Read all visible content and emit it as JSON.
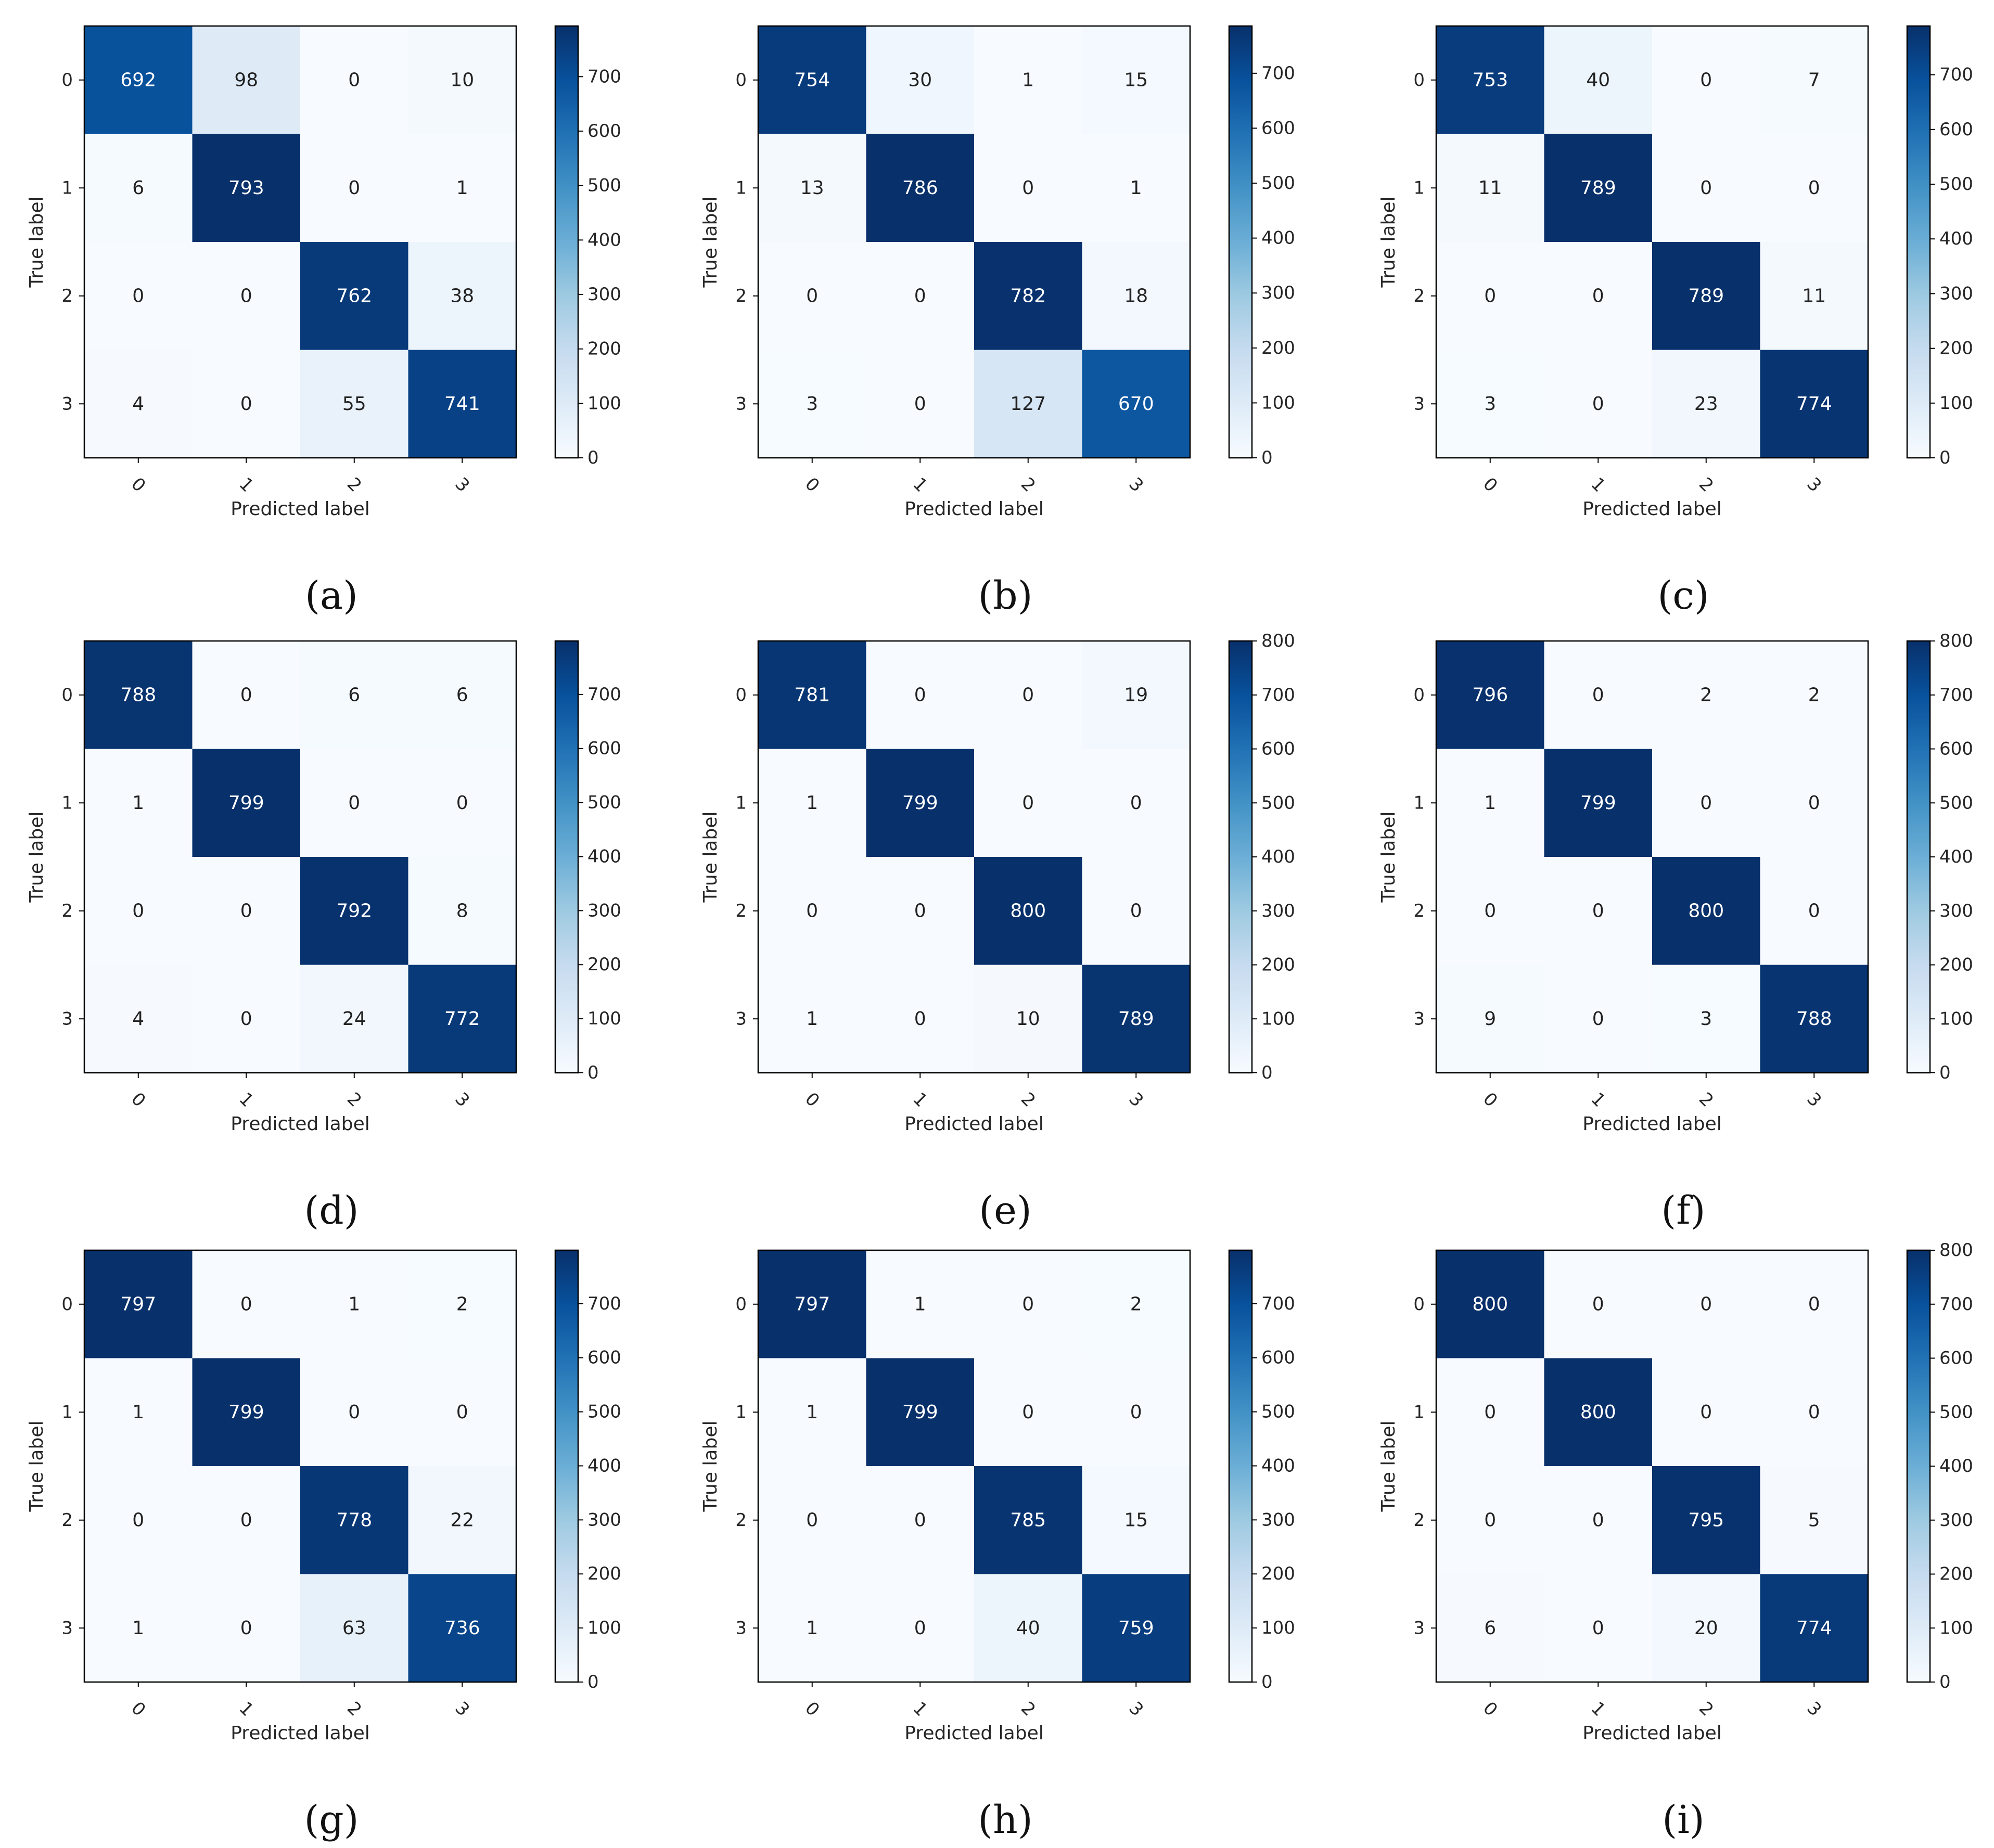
{
  "chart_data": [
    {
      "type": "heatmap",
      "caption": "(a)",
      "xlabel": "Predicted label",
      "ylabel": "True label",
      "x_ticks": [
        "0",
        "1",
        "2",
        "3"
      ],
      "y_ticks": [
        "0",
        "1",
        "2",
        "3"
      ],
      "matrix": [
        [
          692,
          98,
          0,
          10
        ],
        [
          6,
          793,
          0,
          1
        ],
        [
          0,
          0,
          762,
          38
        ],
        [
          4,
          0,
          55,
          741
        ]
      ],
      "colorbar": {
        "min": 0,
        "max": 793,
        "ticks": [
          0,
          100,
          200,
          300,
          400,
          500,
          600,
          700
        ]
      }
    },
    {
      "type": "heatmap",
      "caption": "(b)",
      "xlabel": "Predicted label",
      "ylabel": "True label",
      "x_ticks": [
        "0",
        "1",
        "2",
        "3"
      ],
      "y_ticks": [
        "0",
        "1",
        "2",
        "3"
      ],
      "matrix": [
        [
          754,
          30,
          1,
          15
        ],
        [
          13,
          786,
          0,
          1
        ],
        [
          0,
          0,
          782,
          18
        ],
        [
          3,
          0,
          127,
          670
        ]
      ],
      "colorbar": {
        "min": 0,
        "max": 786,
        "ticks": [
          0,
          100,
          200,
          300,
          400,
          500,
          600,
          700
        ]
      }
    },
    {
      "type": "heatmap",
      "caption": "(c)",
      "xlabel": "Predicted label",
      "ylabel": "True label",
      "x_ticks": [
        "0",
        "1",
        "2",
        "3"
      ],
      "y_ticks": [
        "0",
        "1",
        "2",
        "3"
      ],
      "matrix": [
        [
          753,
          40,
          0,
          7
        ],
        [
          11,
          789,
          0,
          0
        ],
        [
          0,
          0,
          789,
          11
        ],
        [
          3,
          0,
          23,
          774
        ]
      ],
      "colorbar": {
        "min": 0,
        "max": 789,
        "ticks": [
          0,
          100,
          200,
          300,
          400,
          500,
          600,
          700
        ]
      }
    },
    {
      "type": "heatmap",
      "caption": "(d)",
      "xlabel": "Predicted label",
      "ylabel": "True label",
      "x_ticks": [
        "0",
        "1",
        "2",
        "3"
      ],
      "y_ticks": [
        "0",
        "1",
        "2",
        "3"
      ],
      "matrix": [
        [
          788,
          0,
          6,
          6
        ],
        [
          1,
          799,
          0,
          0
        ],
        [
          0,
          0,
          792,
          8
        ],
        [
          4,
          0,
          24,
          772
        ]
      ],
      "colorbar": {
        "min": 0,
        "max": 799,
        "ticks": [
          0,
          100,
          200,
          300,
          400,
          500,
          600,
          700
        ]
      }
    },
    {
      "type": "heatmap",
      "caption": "(e)",
      "xlabel": "Predicted label",
      "ylabel": "True label",
      "x_ticks": [
        "0",
        "1",
        "2",
        "3"
      ],
      "y_ticks": [
        "0",
        "1",
        "2",
        "3"
      ],
      "matrix": [
        [
          781,
          0,
          0,
          19
        ],
        [
          1,
          799,
          0,
          0
        ],
        [
          0,
          0,
          800,
          0
        ],
        [
          1,
          0,
          10,
          789
        ]
      ],
      "colorbar": {
        "min": 0,
        "max": 800,
        "ticks": [
          0,
          100,
          200,
          300,
          400,
          500,
          600,
          700,
          800
        ]
      }
    },
    {
      "type": "heatmap",
      "caption": "(f)",
      "xlabel": "Predicted label",
      "ylabel": "True label",
      "x_ticks": [
        "0",
        "1",
        "2",
        "3"
      ],
      "y_ticks": [
        "0",
        "1",
        "2",
        "3"
      ],
      "matrix": [
        [
          796,
          0,
          2,
          2
        ],
        [
          1,
          799,
          0,
          0
        ],
        [
          0,
          0,
          800,
          0
        ],
        [
          9,
          0,
          3,
          788
        ]
      ],
      "colorbar": {
        "min": 0,
        "max": 800,
        "ticks": [
          0,
          100,
          200,
          300,
          400,
          500,
          600,
          700,
          800
        ]
      }
    },
    {
      "type": "heatmap",
      "caption": "(g)",
      "xlabel": "Predicted label",
      "ylabel": "True label",
      "x_ticks": [
        "0",
        "1",
        "2",
        "3"
      ],
      "y_ticks": [
        "0",
        "1",
        "2",
        "3"
      ],
      "matrix": [
        [
          797,
          0,
          1,
          2
        ],
        [
          1,
          799,
          0,
          0
        ],
        [
          0,
          0,
          778,
          22
        ],
        [
          1,
          0,
          63,
          736
        ]
      ],
      "colorbar": {
        "min": 0,
        "max": 799,
        "ticks": [
          0,
          100,
          200,
          300,
          400,
          500,
          600,
          700
        ]
      }
    },
    {
      "type": "heatmap",
      "caption": "(h)",
      "xlabel": "Predicted label",
      "ylabel": "True label",
      "x_ticks": [
        "0",
        "1",
        "2",
        "3"
      ],
      "y_ticks": [
        "0",
        "1",
        "2",
        "3"
      ],
      "matrix": [
        [
          797,
          1,
          0,
          2
        ],
        [
          1,
          799,
          0,
          0
        ],
        [
          0,
          0,
          785,
          15
        ],
        [
          1,
          0,
          40,
          759
        ]
      ],
      "colorbar": {
        "min": 0,
        "max": 799,
        "ticks": [
          0,
          100,
          200,
          300,
          400,
          500,
          600,
          700
        ]
      }
    },
    {
      "type": "heatmap",
      "caption": "(i)",
      "xlabel": "Predicted label",
      "ylabel": "True label",
      "x_ticks": [
        "0",
        "1",
        "2",
        "3"
      ],
      "y_ticks": [
        "0",
        "1",
        "2",
        "3"
      ],
      "matrix": [
        [
          800,
          0,
          0,
          0
        ],
        [
          0,
          800,
          0,
          0
        ],
        [
          0,
          0,
          795,
          5
        ],
        [
          6,
          0,
          20,
          774
        ]
      ],
      "colorbar": {
        "min": 0,
        "max": 800,
        "ticks": [
          0,
          100,
          200,
          300,
          400,
          500,
          600,
          700,
          800
        ]
      }
    }
  ],
  "colors": {
    "low": "#f7fbff",
    "high": "#08306b",
    "text_light": "#ffffff",
    "text_dark": "#222222"
  }
}
